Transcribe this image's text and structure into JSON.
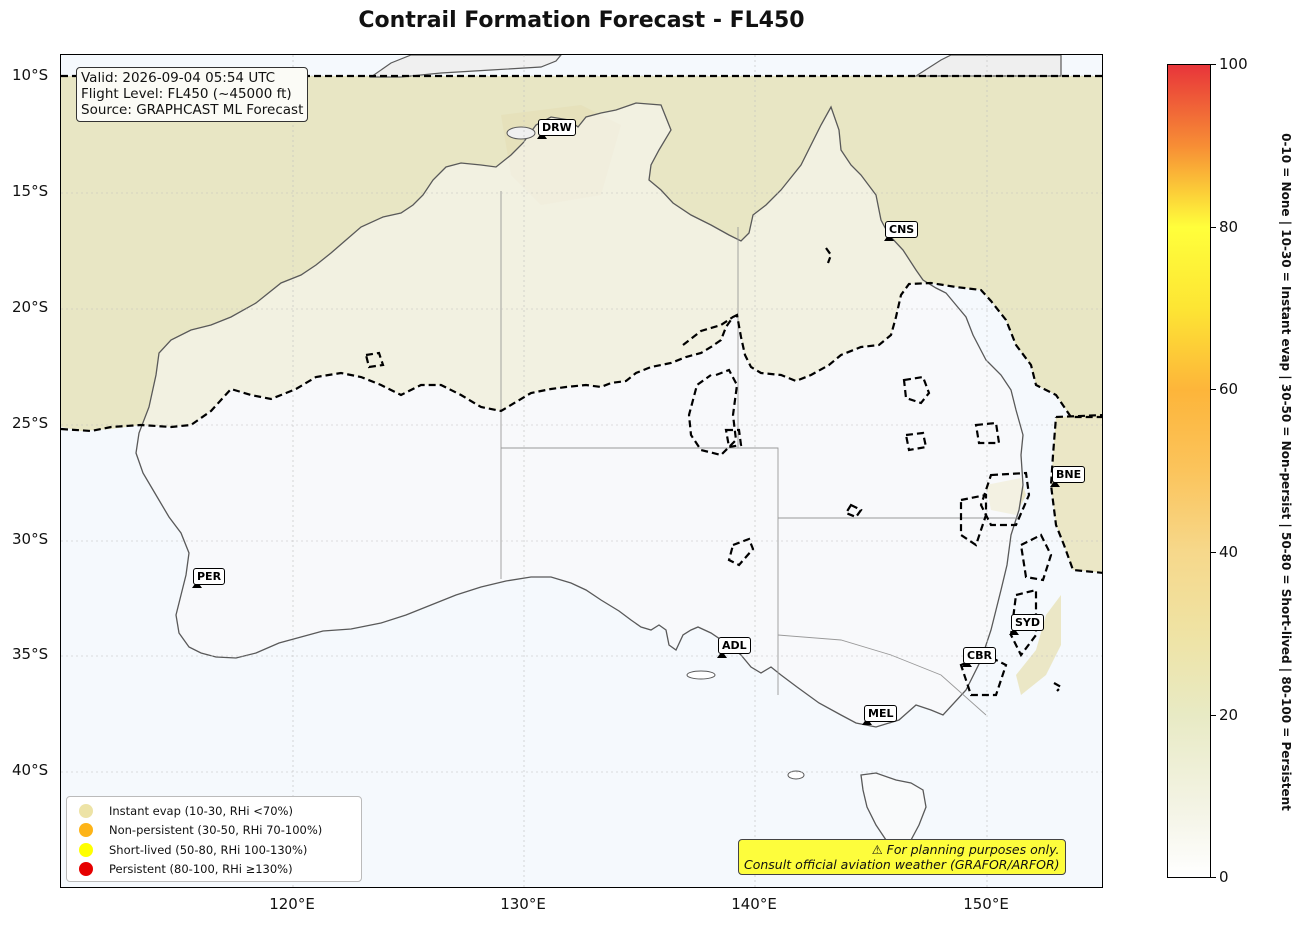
{
  "title": "Contrail Formation Forecast - FL450",
  "info": {
    "valid": "Valid: 2026-09-04 05:54 UTC",
    "flight_level": "Flight Level: FL450 (~45000 ft)",
    "source": "Source: GRAPHCAST ML Forecast"
  },
  "axes": {
    "lat_ticks": [
      "10°S",
      "15°S",
      "20°S",
      "25°S",
      "30°S",
      "35°S",
      "40°S"
    ],
    "lon_ticks": [
      "120°E",
      "130°E",
      "140°E",
      "150°E"
    ]
  },
  "airports": [
    {
      "code": "DRW"
    },
    {
      "code": "CNS"
    },
    {
      "code": "BNE"
    },
    {
      "code": "PER"
    },
    {
      "code": "ADL"
    },
    {
      "code": "SYD"
    },
    {
      "code": "CBR"
    },
    {
      "code": "MEL"
    }
  ],
  "legend": [
    {
      "label": "Instant evap (10-30, RHi <70%)",
      "color": "#ede3a6"
    },
    {
      "label": "Non-persistent (30-50, RHi 70-100%)",
      "color": "#fdb417"
    },
    {
      "label": "Short-lived (50-80, RHi 100-130%)",
      "color": "#ffff00"
    },
    {
      "label": "Persistent (80-100, RHi ≥130%)",
      "color": "#e60000"
    }
  ],
  "warning": {
    "line1": "⚠ For planning purposes only.",
    "line2": "Consult official aviation weather (GRAFOR/ARFOR)"
  },
  "colorbar": {
    "ticks": [
      "0",
      "20",
      "40",
      "60",
      "80",
      "100"
    ],
    "label": "0-10 = None  |  10-30 = Instant evap  |  30-50 = Non-persist  |  50-80 = Short-lived  |  80-100 = Persistent"
  }
}
